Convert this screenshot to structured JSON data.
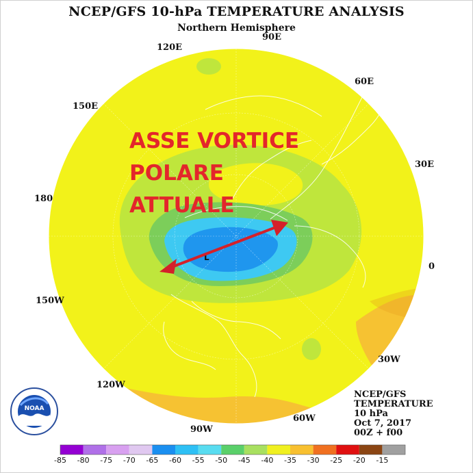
{
  "header": {
    "title": "NCEP/GFS 10-hPa TEMPERATURE ANALYSIS",
    "subtitle": "Northern Hemisphere"
  },
  "longitude_labels": [
    {
      "key": "lon_90e",
      "text": "90E"
    },
    {
      "key": "lon_120e",
      "text": "120E"
    },
    {
      "key": "lon_60e",
      "text": "60E"
    },
    {
      "key": "lon_150e",
      "text": "150E"
    },
    {
      "key": "lon_30e",
      "text": "30E"
    },
    {
      "key": "lon_180",
      "text": "180"
    },
    {
      "key": "lon_0",
      "text": "0"
    },
    {
      "key": "lon_150w",
      "text": "150W"
    },
    {
      "key": "lon_30w",
      "text": "30W"
    },
    {
      "key": "lon_120w",
      "text": "120W"
    },
    {
      "key": "lon_60w",
      "text": "60W"
    },
    {
      "key": "lon_90w",
      "text": "90W"
    }
  ],
  "annotation": {
    "lines": [
      "ASSE VORTICE",
      "POLARE",
      "ATTUALE"
    ],
    "color": "#e3262b"
  },
  "vortex_low_marker": "L",
  "info_block": [
    "NCEP/GFS",
    "TEMPERATURE",
    "10 hPa",
    "Oct 7, 2017",
    "00Z + f00"
  ],
  "logo": {
    "text": "NOAA",
    "icon": "noaa-logo-icon"
  },
  "colorbar": {
    "labels": [
      "-85",
      "-80",
      "-75",
      "-70",
      "-65",
      "-60",
      "-55",
      "-50",
      "-45",
      "-40",
      "-35",
      "-30",
      "-25",
      "-20",
      "-15"
    ],
    "colors": [
      "#9400d3",
      "#b070e8",
      "#d8a0f0",
      "#e0c8f0",
      "#1a8ff0",
      "#2ec0f5",
      "#58dcf0",
      "#5ad06a",
      "#a8e060",
      "#f0f020",
      "#f8c030",
      "#f07020",
      "#e01010",
      "#8b4513",
      "#a0a0a0"
    ]
  },
  "colors": {
    "field_yellow": "#f2f21a",
    "field_lightgreen": "#bfe63c",
    "field_green": "#7cce5a",
    "field_cyan": "#3ec9f2",
    "field_blue": "#1f96ee",
    "field_orange": "#f6c232"
  }
}
